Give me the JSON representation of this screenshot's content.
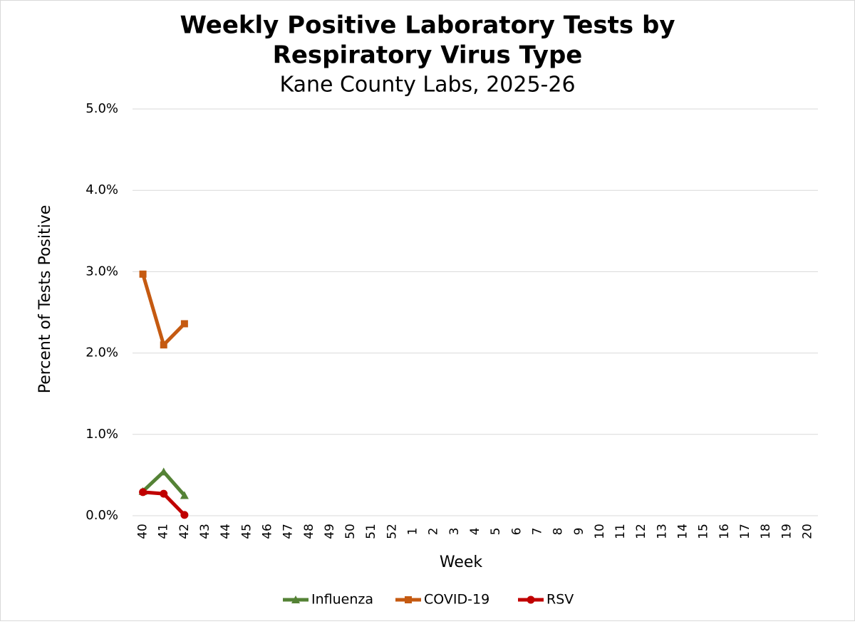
{
  "chart_data": {
    "type": "line",
    "title": [
      "Weekly Positive Laboratory Tests by",
      "Respiratory Virus Type"
    ],
    "subtitle": "Kane County Labs, 2025-26",
    "x_label": "Week",
    "y_label": "Percent of Tests Positive",
    "categories": [
      "40",
      "41",
      "42",
      "43",
      "44",
      "45",
      "46",
      "47",
      "48",
      "49",
      "50",
      "51",
      "52",
      "1",
      "2",
      "3",
      "4",
      "5",
      "6",
      "7",
      "8",
      "9",
      "10",
      "11",
      "12",
      "13",
      "14",
      "15",
      "16",
      "17",
      "18",
      "19",
      "20"
    ],
    "series": [
      {
        "name": "Influenza",
        "color": "#548235",
        "marker": "triangle",
        "values": [
          0.3,
          0.54,
          0.25,
          null,
          null,
          null,
          null,
          null,
          null,
          null,
          null,
          null,
          null,
          null,
          null,
          null,
          null,
          null,
          null,
          null,
          null,
          null,
          null,
          null,
          null,
          null,
          null,
          null,
          null,
          null,
          null,
          null,
          null
        ]
      },
      {
        "name": "COVID-19",
        "color": "#c55a11",
        "marker": "square",
        "values": [
          2.97,
          2.1,
          2.36,
          null,
          null,
          null,
          null,
          null,
          null,
          null,
          null,
          null,
          null,
          null,
          null,
          null,
          null,
          null,
          null,
          null,
          null,
          null,
          null,
          null,
          null,
          null,
          null,
          null,
          null,
          null,
          null,
          null,
          null
        ]
      },
      {
        "name": "RSV",
        "color": "#c00000",
        "marker": "circle",
        "values": [
          0.29,
          0.27,
          0.01,
          null,
          null,
          null,
          null,
          null,
          null,
          null,
          null,
          null,
          null,
          null,
          null,
          null,
          null,
          null,
          null,
          null,
          null,
          null,
          null,
          null,
          null,
          null,
          null,
          null,
          null,
          null,
          null,
          null,
          null
        ]
      }
    ],
    "ylim": [
      0,
      5
    ],
    "yticks": [
      {
        "value": 0,
        "label": "0.0%"
      },
      {
        "value": 1,
        "label": "1.0%"
      },
      {
        "value": 2,
        "label": "2.0%"
      },
      {
        "value": 3,
        "label": "3.0%"
      },
      {
        "value": 4,
        "label": "4.0%"
      },
      {
        "value": 5,
        "label": "5.0%"
      }
    ],
    "grid": true,
    "legend": "bottom"
  }
}
